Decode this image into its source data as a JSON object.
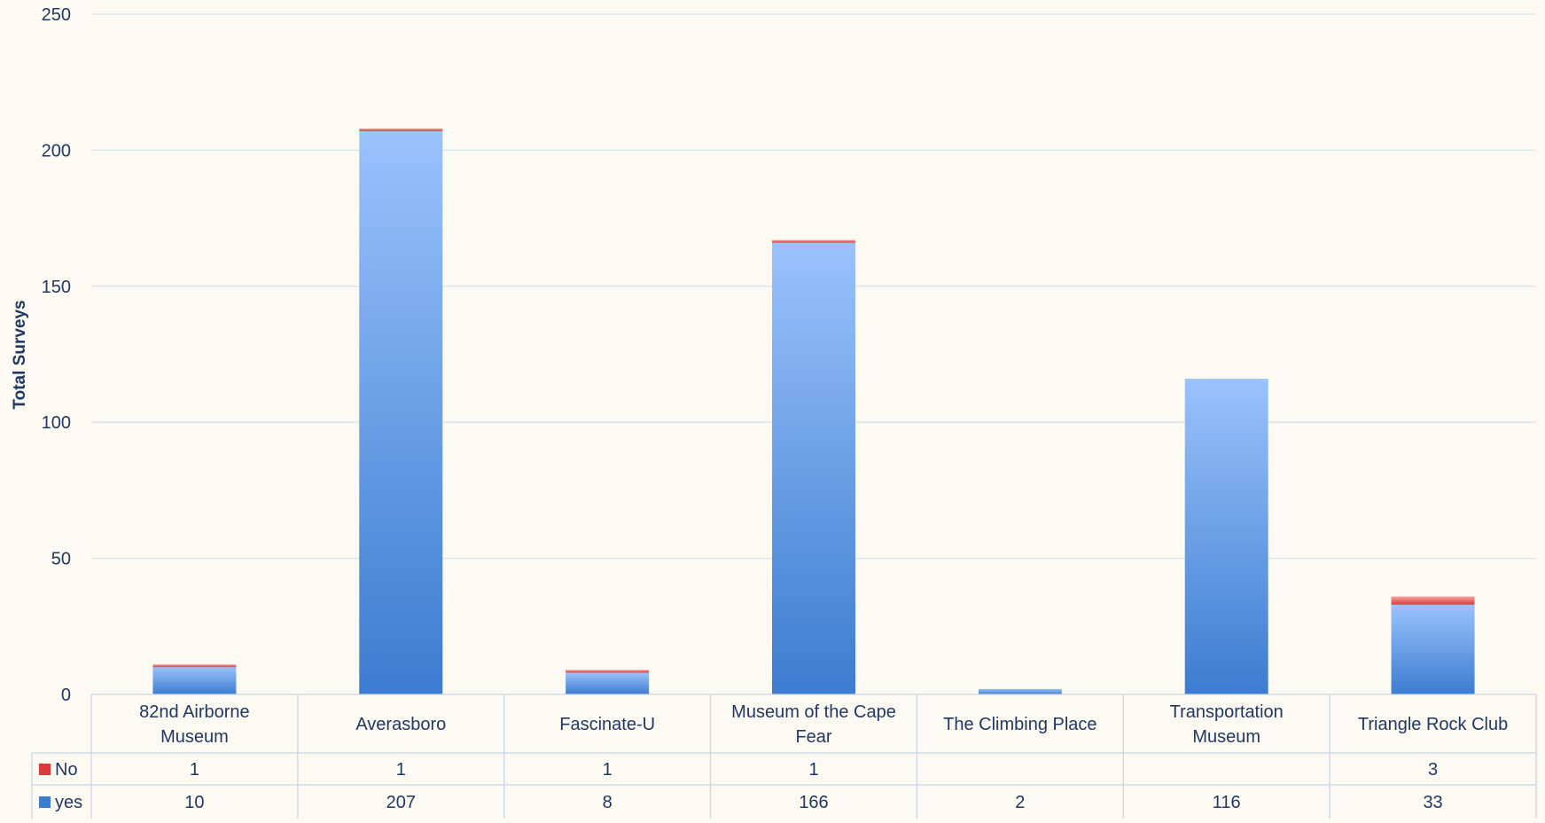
{
  "chart_data": {
    "type": "bar",
    "stacked": true,
    "title": "",
    "xlabel": "",
    "ylabel": "Total Surveys",
    "ylim": [
      0,
      250
    ],
    "yticks": [
      0,
      50,
      100,
      150,
      200,
      250
    ],
    "grid": true,
    "legend": "data-table-left",
    "categories": [
      [
        "82nd Airborne",
        "Museum"
      ],
      [
        "Averasboro"
      ],
      [
        "Fascinate-U"
      ],
      [
        "Museum of the Cape",
        "Fear"
      ],
      [
        "The Climbing Place"
      ],
      [
        "Transportation",
        "Museum"
      ],
      [
        "Triangle Rock Club"
      ]
    ],
    "series": [
      {
        "name": "yes",
        "values": [
          10,
          207,
          8,
          166,
          2,
          116,
          33
        ],
        "labels": [
          "10",
          "207",
          "8",
          "166",
          "2",
          "116",
          "33"
        ]
      },
      {
        "name": "No",
        "values": [
          1,
          1,
          1,
          1,
          null,
          null,
          3
        ],
        "labels": [
          "1",
          "1",
          "1",
          "1",
          "",
          "",
          "3"
        ]
      }
    ],
    "table_rows_order": [
      "No",
      "yes"
    ]
  },
  "colors": {
    "background": "#fdfaf3",
    "grid": "#d6e3f0",
    "axis_text": "#1f3864",
    "yes_top": "#9ac2fc",
    "yes_bottom": "#3c7ccf",
    "no_top": "#f4a3a3",
    "no_bottom": "#d93a3a",
    "table_line": "#c9d6e6"
  }
}
